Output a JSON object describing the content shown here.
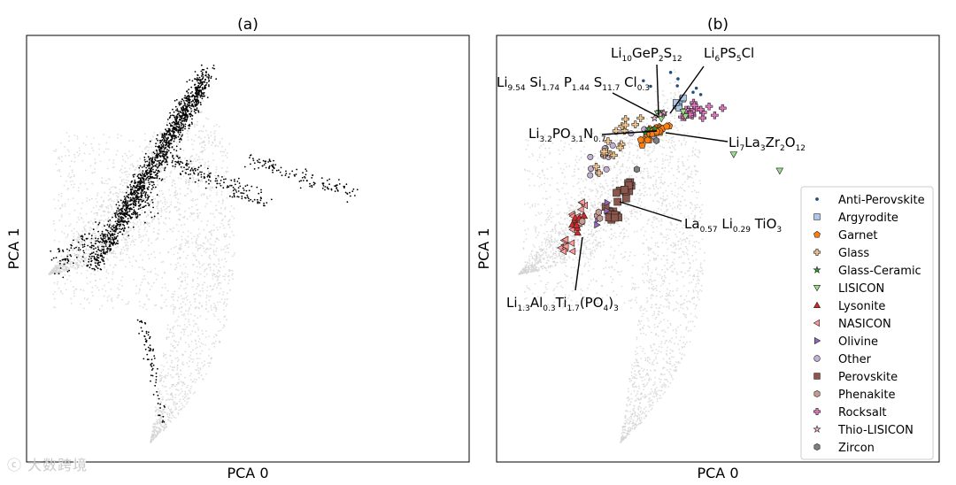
{
  "chart_data": [
    {
      "type": "scatter",
      "title": "(a)",
      "xlabel": "PCA 0",
      "ylabel": "PCA 1",
      "grid": false,
      "series": [],
      "point_cloud": {
        "background": {
          "color": "#d3d3d3"
        },
        "highlighted": {
          "color": "#000000"
        }
      }
    },
    {
      "type": "scatter",
      "title": "(b)",
      "xlabel": "PCA 0",
      "ylabel": "PCA 1",
      "grid": false,
      "legend": "right",
      "point_cloud": {
        "background": {
          "color": "#d3d3d3"
        }
      },
      "series": [
        {
          "name": "Anti-Perovskite",
          "marker": "dot",
          "color": "#1f4e79"
        },
        {
          "name": "Argyrodite",
          "marker": "square",
          "color": "#aec7e8"
        },
        {
          "name": "Garnet",
          "marker": "pentagon",
          "color": "#ff7f0e"
        },
        {
          "name": "Glass",
          "marker": "plus",
          "color": "#f7c88f"
        },
        {
          "name": "Glass-Ceramic",
          "marker": "star",
          "color": "#2ca02c"
        },
        {
          "name": "LISICON",
          "marker": "triangle-down",
          "color": "#98df8a"
        },
        {
          "name": "Lysonite",
          "marker": "triangle-up",
          "color": "#d62728"
        },
        {
          "name": "NASICON",
          "marker": "triangle-left",
          "color": "#ff9896"
        },
        {
          "name": "Olivine",
          "marker": "triangle-right",
          "color": "#9467bd"
        },
        {
          "name": "Other",
          "marker": "circle",
          "color": "#c5b0d5"
        },
        {
          "name": "Perovskite",
          "marker": "square",
          "color": "#8c564b"
        },
        {
          "name": "Phenakite",
          "marker": "hexagon",
          "color": "#c49c94"
        },
        {
          "name": "Rocksalt",
          "marker": "plus",
          "color": "#e377c2"
        },
        {
          "name": "Thio-LISICON",
          "marker": "star",
          "color": "#f7b6d2"
        },
        {
          "name": "Zircon",
          "marker": "hexagon",
          "color": "#7f7f7f"
        }
      ],
      "annotations": [
        {
          "text": "Li10GeP2S12",
          "parts": [
            [
              "Li",
              ""
            ],
            [
              "10",
              "sub"
            ],
            [
              "GeP",
              ""
            ],
            [
              "2",
              "sub"
            ],
            [
              "S",
              ""
            ],
            [
              "12",
              "sub"
            ]
          ]
        },
        {
          "text": "Li6PS5Cl",
          "parts": [
            [
              "Li",
              ""
            ],
            [
              "6",
              "sub"
            ],
            [
              "PS",
              ""
            ],
            [
              "5",
              "sub"
            ],
            [
              "Cl",
              ""
            ]
          ]
        },
        {
          "text": "Li9.54 Si1.74 P1.44 S11.7 Cl0.3",
          "parts": [
            [
              "Li",
              ""
            ],
            [
              "9.54",
              "sub"
            ],
            [
              " Si",
              ""
            ],
            [
              "1.74",
              "sub"
            ],
            [
              " P",
              ""
            ],
            [
              "1.44",
              "sub"
            ],
            [
              " S",
              ""
            ],
            [
              "11.7",
              "sub"
            ],
            [
              " Cl",
              ""
            ],
            [
              "0.3",
              "sub"
            ]
          ]
        },
        {
          "text": "Li3.2PO3.1N0.7",
          "parts": [
            [
              "Li",
              ""
            ],
            [
              "3.2",
              "sub"
            ],
            [
              "PO",
              ""
            ],
            [
              "3.1",
              "sub"
            ],
            [
              "N",
              ""
            ],
            [
              "0.7",
              "sub"
            ]
          ]
        },
        {
          "text": "Li7La3Zr2O12",
          "parts": [
            [
              "Li",
              ""
            ],
            [
              "7",
              "sub"
            ],
            [
              "La",
              ""
            ],
            [
              "3",
              "sub"
            ],
            [
              "Zr",
              ""
            ],
            [
              "2",
              "sub"
            ],
            [
              "O",
              ""
            ],
            [
              "12",
              "sub"
            ]
          ]
        },
        {
          "text": "La0.57 Li0.29 TiO3",
          "parts": [
            [
              "La",
              ""
            ],
            [
              "0.57",
              "sub"
            ],
            [
              " Li",
              ""
            ],
            [
              "0.29",
              "sub"
            ],
            [
              " TiO",
              ""
            ],
            [
              "3",
              "sub"
            ]
          ]
        },
        {
          "text": "Li1.3Al0.3Ti1.7(PO4)3",
          "parts": [
            [
              "Li",
              ""
            ],
            [
              "1.3",
              "sub"
            ],
            [
              "Al",
              ""
            ],
            [
              "0.3",
              "sub"
            ],
            [
              "Ti",
              ""
            ],
            [
              "1.7",
              "sub"
            ],
            [
              "(PO",
              ""
            ],
            [
              "4",
              "sub"
            ],
            [
              ")",
              ""
            ],
            [
              "3",
              "sub"
            ]
          ]
        }
      ]
    }
  ],
  "watermark": "ⓒ 大数跨境"
}
